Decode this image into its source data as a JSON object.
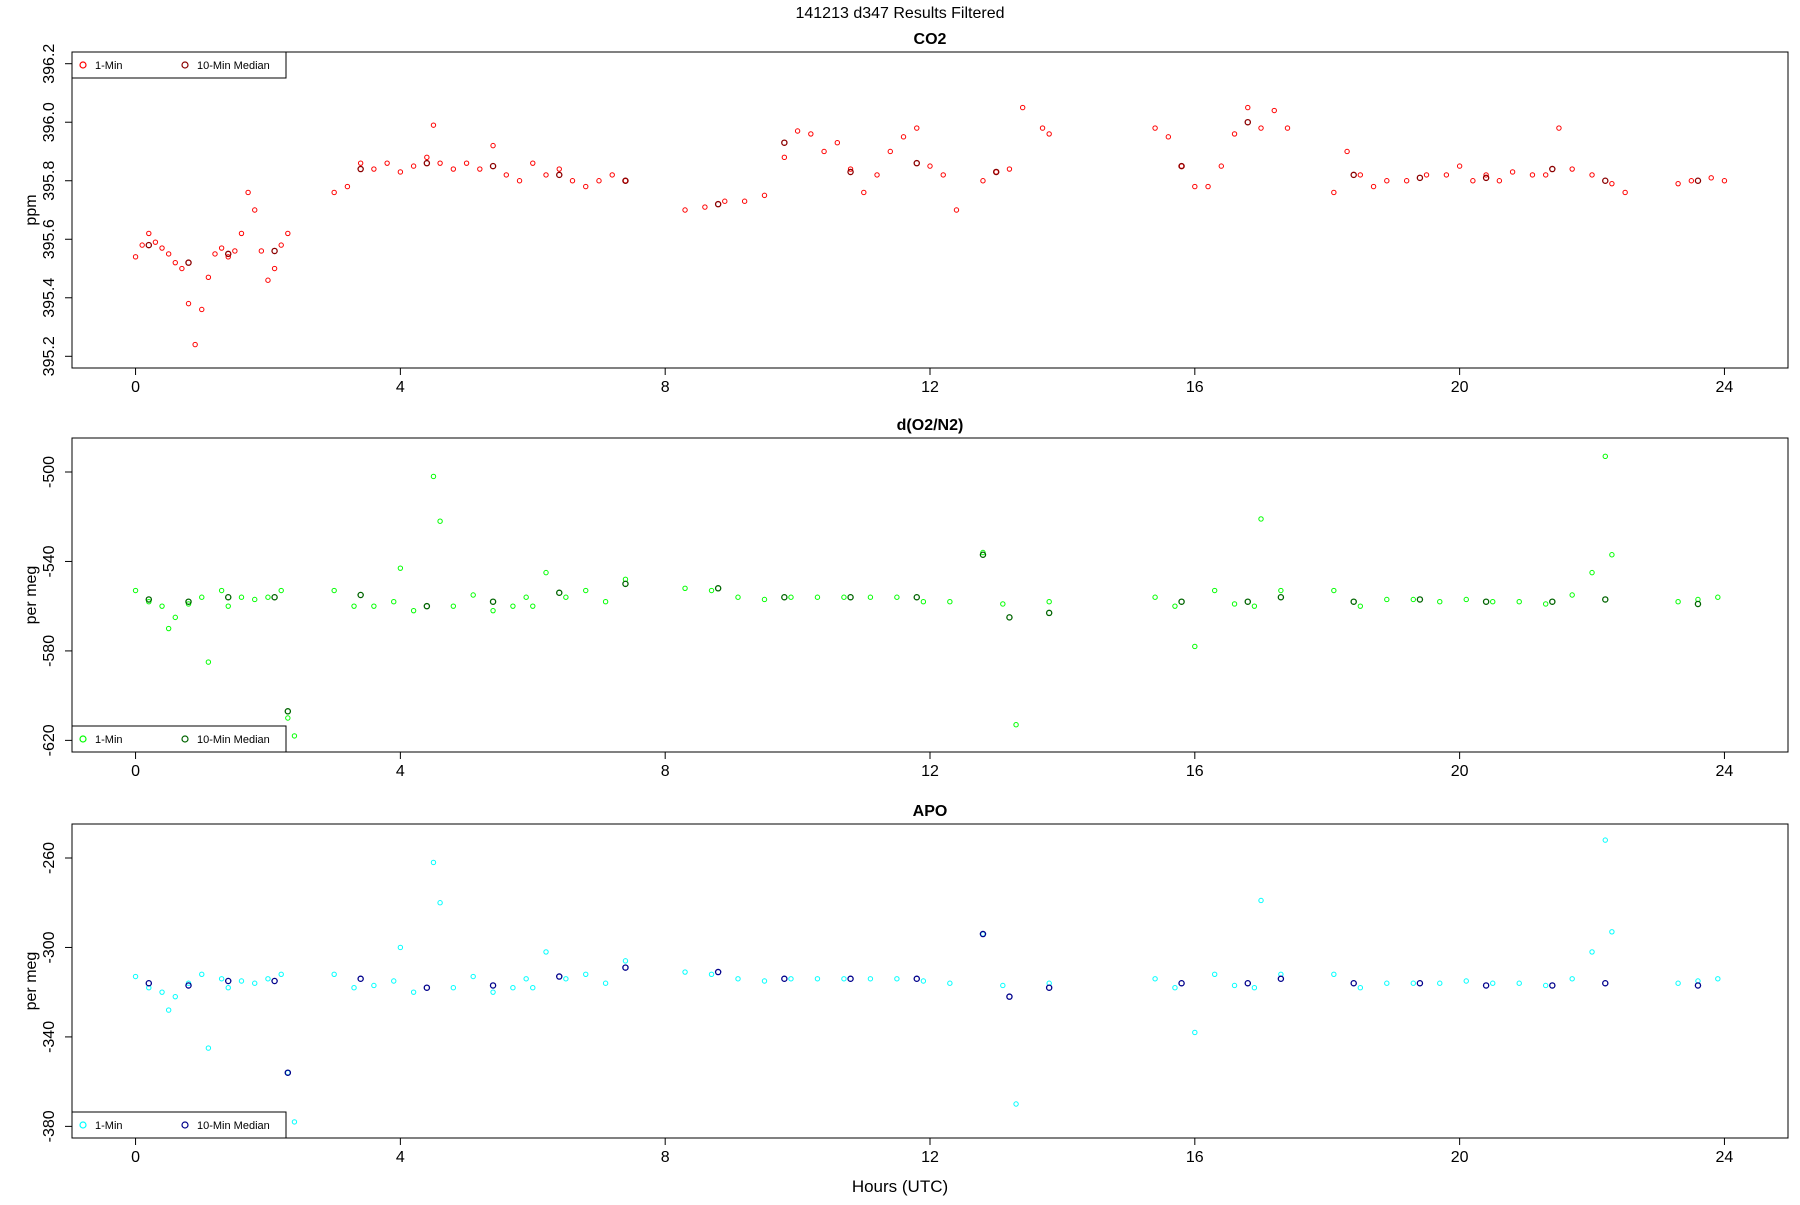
{
  "figure_title": "141213   d347   Results Filtered",
  "xlabel": "Hours (UTC)",
  "colors": {
    "co2_1min": "#ff0000",
    "co2_median": "#8b0000",
    "o2_1min": "#00ff00",
    "o2_median": "#006400",
    "apo_1min": "#00ffff",
    "apo_median": "#00008b"
  },
  "chart_data": [
    {
      "type": "scatter",
      "title": "CO2",
      "ylabel": "ppm",
      "xlim": [
        0,
        24
      ],
      "ylim": [
        395.2,
        396.2
      ],
      "x_ticks": [
        "0",
        "4",
        "8",
        "12",
        "16",
        "20",
        "24"
      ],
      "y_ticks": [
        "395.2",
        "395.4",
        "395.6",
        "395.8",
        "396.0",
        "396.2"
      ],
      "legend": {
        "position": "top-left",
        "entries": [
          "1-Min",
          "10-Min Median"
        ]
      },
      "series": [
        {
          "name": "1-Min",
          "x": [
            0.0,
            0.1,
            0.2,
            0.3,
            0.4,
            0.5,
            0.6,
            0.7,
            0.8,
            0.9,
            1.0,
            1.1,
            1.2,
            1.3,
            1.4,
            1.5,
            1.6,
            1.7,
            1.8,
            1.9,
            2.0,
            2.1,
            2.2,
            2.3,
            3.0,
            3.2,
            3.4,
            3.6,
            3.8,
            4.0,
            4.2,
            4.4,
            4.5,
            4.6,
            4.8,
            5.0,
            5.2,
            5.4,
            5.6,
            5.8,
            6.0,
            6.2,
            6.4,
            6.6,
            6.8,
            7.0,
            7.2,
            7.4,
            8.3,
            8.6,
            8.9,
            9.2,
            9.5,
            9.8,
            10.0,
            10.2,
            10.4,
            10.6,
            10.8,
            11.0,
            11.2,
            11.4,
            11.6,
            11.8,
            12.0,
            12.2,
            12.4,
            12.8,
            13.0,
            13.2,
            13.4,
            13.7,
            13.8,
            15.4,
            15.6,
            15.8,
            16.0,
            16.2,
            16.4,
            16.6,
            16.8,
            17.0,
            17.2,
            17.4,
            18.1,
            18.3,
            18.5,
            18.7,
            18.9,
            19.2,
            19.5,
            19.8,
            20.0,
            20.2,
            20.4,
            20.6,
            20.8,
            21.1,
            21.3,
            21.5,
            21.7,
            22.0,
            22.3,
            22.5,
            23.3,
            23.5,
            23.8,
            24.0
          ],
          "values": [
            395.54,
            395.58,
            395.62,
            395.59,
            395.57,
            395.55,
            395.52,
            395.5,
            395.38,
            395.24,
            395.36,
            395.47,
            395.55,
            395.57,
            395.54,
            395.56,
            395.62,
            395.76,
            395.7,
            395.56,
            395.46,
            395.5,
            395.58,
            395.62,
            395.76,
            395.78,
            395.86,
            395.84,
            395.86,
            395.83,
            395.85,
            395.88,
            395.99,
            395.86,
            395.84,
            395.86,
            395.84,
            395.92,
            395.82,
            395.8,
            395.86,
            395.82,
            395.84,
            395.8,
            395.78,
            395.8,
            395.82,
            395.8,
            395.7,
            395.71,
            395.73,
            395.73,
            395.75,
            395.88,
            395.97,
            395.96,
            395.9,
            395.93,
            395.84,
            395.76,
            395.82,
            395.9,
            395.95,
            395.98,
            395.85,
            395.82,
            395.7,
            395.8,
            395.83,
            395.84,
            396.05,
            395.98,
            395.96,
            395.98,
            395.95,
            395.85,
            395.78,
            395.78,
            395.85,
            395.96,
            396.05,
            395.98,
            396.04,
            395.98,
            395.76,
            395.9,
            395.82,
            395.78,
            395.8,
            395.8,
            395.82,
            395.82,
            395.85,
            395.8,
            395.82,
            395.8,
            395.83,
            395.82,
            395.82,
            395.98,
            395.84,
            395.82,
            395.79,
            395.76,
            395.79,
            395.8,
            395.81,
            395.8
          ]
        },
        {
          "name": "10-Min Median",
          "x": [
            0.2,
            0.8,
            1.4,
            2.1,
            3.4,
            4.4,
            5.4,
            6.4,
            7.4,
            8.8,
            9.8,
            10.8,
            11.8,
            13.0,
            15.8,
            16.8,
            18.4,
            19.4,
            20.4,
            21.4,
            22.2,
            23.6
          ],
          "values": [
            395.58,
            395.52,
            395.55,
            395.56,
            395.84,
            395.86,
            395.85,
            395.82,
            395.8,
            395.72,
            395.93,
            395.83,
            395.86,
            395.83,
            395.85,
            396.0,
            395.82,
            395.81,
            395.81,
            395.84,
            395.8,
            395.8
          ]
        }
      ]
    },
    {
      "type": "scatter",
      "title": "d(O2/N2)",
      "ylabel": "per meg",
      "xlim": [
        0,
        24
      ],
      "ylim": [
        -620,
        -490
      ],
      "x_ticks": [
        "0",
        "4",
        "8",
        "12",
        "16",
        "20",
        "24"
      ],
      "y_ticks": [
        "-620",
        "-580",
        "-540",
        "-500"
      ],
      "legend": {
        "position": "bottom-left",
        "entries": [
          "1-Min",
          "10-Min Median"
        ]
      },
      "series": [
        {
          "name": "1-Min",
          "x": [
            0.0,
            0.2,
            0.4,
            0.5,
            0.6,
            0.8,
            1.0,
            1.1,
            1.3,
            1.4,
            1.6,
            1.8,
            2.0,
            2.2,
            2.3,
            2.4,
            3.0,
            3.3,
            3.6,
            3.9,
            4.0,
            4.2,
            4.5,
            4.6,
            4.8,
            5.1,
            5.4,
            5.7,
            5.9,
            6.0,
            6.2,
            6.5,
            6.8,
            7.1,
            7.4,
            8.3,
            8.7,
            9.1,
            9.5,
            9.9,
            10.3,
            10.7,
            11.1,
            11.5,
            11.9,
            12.3,
            12.8,
            13.1,
            13.3,
            13.8,
            15.4,
            15.7,
            16.0,
            16.3,
            16.6,
            16.9,
            17.0,
            17.3,
            18.1,
            18.5,
            18.9,
            19.3,
            19.7,
            20.1,
            20.5,
            20.9,
            21.3,
            21.7,
            22.0,
            22.2,
            22.3,
            23.3,
            23.6,
            23.9
          ],
          "values": [
            -553,
            -558,
            -560,
            -570,
            -565,
            -559,
            -556,
            -585,
            -553,
            -560,
            -556,
            -557,
            -556,
            -553,
            -610,
            -618,
            -553,
            -560,
            -560,
            -558,
            -543,
            -562,
            -502,
            -522,
            -560,
            -555,
            -562,
            -560,
            -556,
            -560,
            -545,
            -556,
            -553,
            -558,
            -548,
            -552,
            -553,
            -556,
            -557,
            -556,
            -556,
            -556,
            -556,
            -556,
            -558,
            -558,
            -536,
            -559,
            -613,
            -558,
            -556,
            -560,
            -578,
            -553,
            -559,
            -560,
            -521,
            -553,
            -553,
            -560,
            -557,
            -557,
            -558,
            -557,
            -558,
            -558,
            -559,
            -555,
            -545,
            -493,
            -537,
            -558,
            -557,
            -556
          ]
        },
        {
          "name": "10-Min Median",
          "x": [
            0.2,
            0.8,
            1.4,
            2.1,
            2.3,
            3.4,
            4.4,
            5.4,
            6.4,
            7.4,
            8.8,
            9.8,
            10.8,
            11.8,
            12.8,
            13.2,
            13.8,
            15.8,
            16.8,
            17.3,
            18.4,
            19.4,
            20.4,
            21.4,
            22.2,
            23.6
          ],
          "values": [
            -557,
            -558,
            -556,
            -556,
            -607,
            -555,
            -560,
            -558,
            -554,
            -550,
            -552,
            -556,
            -556,
            -556,
            -537,
            -565,
            -563,
            -558,
            -558,
            -556,
            -558,
            -557,
            -558,
            -558,
            -557,
            -559
          ]
        }
      ]
    },
    {
      "type": "scatter",
      "title": "APO",
      "ylabel": "per meg",
      "xlim": [
        0,
        24
      ],
      "ylim": [
        -380,
        -250
      ],
      "x_ticks": [
        "0",
        "4",
        "8",
        "12",
        "16",
        "20",
        "24"
      ],
      "y_ticks": [
        "-380",
        "-340",
        "-300",
        "-260"
      ],
      "legend": {
        "position": "bottom-left",
        "entries": [
          "1-Min",
          "10-Min Median"
        ]
      },
      "series": [
        {
          "name": "1-Min",
          "x": [
            0.0,
            0.2,
            0.4,
            0.5,
            0.6,
            0.8,
            1.0,
            1.1,
            1.3,
            1.4,
            1.6,
            1.8,
            2.0,
            2.2,
            2.3,
            2.4,
            3.0,
            3.3,
            3.6,
            3.9,
            4.0,
            4.2,
            4.5,
            4.6,
            4.8,
            5.1,
            5.4,
            5.7,
            5.9,
            6.0,
            6.2,
            6.5,
            6.8,
            7.1,
            7.4,
            8.3,
            8.7,
            9.1,
            9.5,
            9.9,
            10.3,
            10.7,
            11.1,
            11.5,
            11.9,
            12.3,
            12.8,
            13.1,
            13.3,
            13.8,
            15.4,
            15.7,
            16.0,
            16.3,
            16.6,
            16.9,
            17.0,
            17.3,
            18.1,
            18.5,
            18.9,
            19.3,
            19.7,
            20.1,
            20.5,
            20.9,
            21.3,
            21.7,
            22.0,
            22.2,
            22.3,
            23.3,
            23.6,
            23.9
          ],
          "values": [
            -313,
            -318,
            -320,
            -328,
            -322,
            -316,
            -312,
            -345,
            -314,
            -318,
            -315,
            -316,
            -314,
            -312,
            -356,
            -378,
            -312,
            -318,
            -317,
            -315,
            -300,
            -320,
            -262,
            -280,
            -318,
            -313,
            -320,
            -318,
            -314,
            -318,
            -302,
            -314,
            -312,
            -316,
            -306,
            -311,
            -312,
            -314,
            -315,
            -314,
            -314,
            -314,
            -314,
            -314,
            -315,
            -316,
            -294,
            -317,
            -370,
            -316,
            -314,
            -318,
            -338,
            -312,
            -317,
            -318,
            -279,
            -312,
            -312,
            -318,
            -316,
            -316,
            -316,
            -315,
            -316,
            -316,
            -317,
            -314,
            -302,
            -252,
            -293,
            -316,
            -315,
            -314
          ]
        },
        {
          "name": "10-Min Median",
          "x": [
            0.2,
            0.8,
            1.4,
            2.1,
            2.3,
            3.4,
            4.4,
            5.4,
            6.4,
            7.4,
            8.8,
            9.8,
            10.8,
            11.8,
            12.8,
            13.2,
            13.8,
            15.8,
            16.8,
            17.3,
            18.4,
            19.4,
            20.4,
            21.4,
            22.2,
            23.6
          ],
          "values": [
            -316,
            -317,
            -315,
            -315,
            -356,
            -314,
            -318,
            -317,
            -313,
            -309,
            -311,
            -314,
            -314,
            -314,
            -294,
            -322,
            -318,
            -316,
            -316,
            -314,
            -316,
            -316,
            -317,
            -317,
            -316,
            -317
          ]
        }
      ]
    }
  ]
}
